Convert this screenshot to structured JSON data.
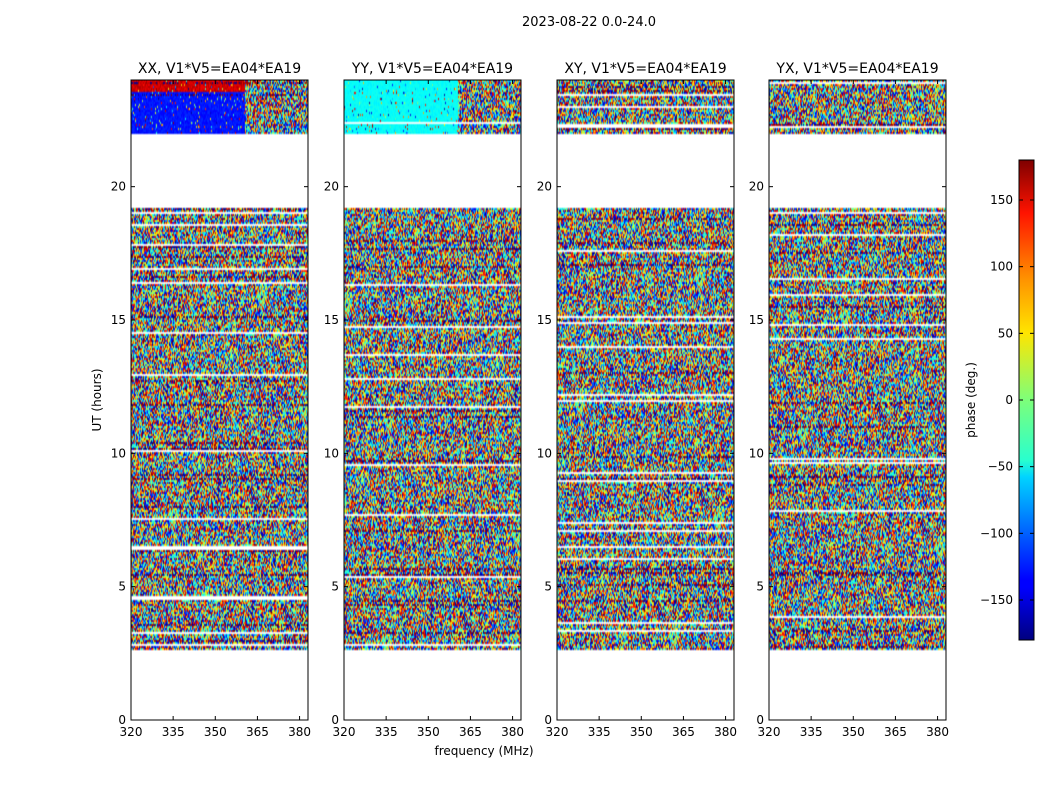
{
  "chart_data": {
    "type": "heatmap",
    "suptitle": "2023-08-22 0.0-24.0",
    "xlabel": "frequency (MHz)",
    "ylabel": "UT (hours)",
    "xlim": [
      320,
      383
    ],
    "ylim": [
      0,
      24
    ],
    "x_ticks": [
      320,
      335,
      350,
      365,
      380
    ],
    "y_ticks": [
      0,
      5,
      10,
      15,
      20
    ],
    "colorbar": {
      "label": "phase (deg.)",
      "range": [
        -180,
        180
      ],
      "ticks": [
        -150,
        -100,
        -50,
        0,
        50,
        100,
        150
      ],
      "tick_labels": [
        "−150",
        "−100",
        "−50",
        "0",
        "50",
        "100",
        "150"
      ],
      "colormap": "jet"
    },
    "data_ut_ranges": [
      [
        2.6,
        19.2
      ],
      [
        22.0,
        24.0
      ]
    ],
    "panels": [
      {
        "title": "XX, V1*V5=EA04*EA19",
        "top_band_color": "#0a2cff"
      },
      {
        "title": "YY, V1*V5=EA04*EA19",
        "top_band_color": "#18f0e8"
      },
      {
        "title": "XY, V1*V5=EA04*EA19",
        "top_band_color": "noise"
      },
      {
        "title": "YX, V1*V5=EA04*EA19",
        "top_band_color": "noise"
      }
    ]
  }
}
